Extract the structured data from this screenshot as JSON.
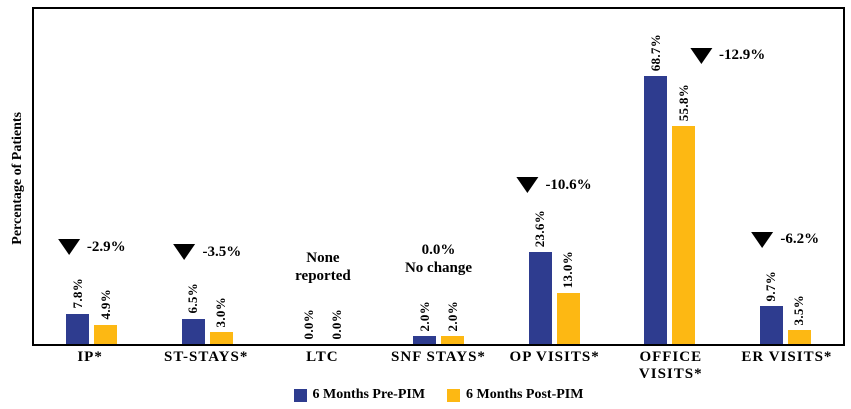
{
  "chart_data": {
    "type": "bar",
    "title": "",
    "ylabel": "Percentage of Patients",
    "xlabel": "",
    "categories": [
      "IP*",
      "ST-STAYS*",
      "LTC",
      "SNF STAYS*",
      "OP VISITS*",
      "OFFICE\nVISITS*",
      "ER VISITS*"
    ],
    "series": [
      {
        "name": "6 Months Pre-PIM",
        "color": "#2e3c8f",
        "values": [
          7.8,
          6.5,
          0.0,
          2.0,
          23.6,
          68.7,
          9.7
        ]
      },
      {
        "name": "6 Months Post-PIM",
        "color": "#fdb813",
        "values": [
          4.9,
          3.0,
          0.0,
          2.0,
          13.0,
          55.8,
          3.5
        ]
      }
    ],
    "value_label_format": "{value}%",
    "annotations": [
      {
        "category": "IP*",
        "type": "decrease",
        "text": "-2.9%"
      },
      {
        "category": "ST-STAYS*",
        "type": "decrease",
        "text": "-3.5%"
      },
      {
        "category": "LTC",
        "type": "note",
        "lines": [
          "None",
          "reported"
        ]
      },
      {
        "category": "SNF STAYS*",
        "type": "note",
        "lines": [
          "0.0%",
          "No change"
        ]
      },
      {
        "category": "OP VISITS*",
        "type": "decrease",
        "text": "-10.6%"
      },
      {
        "category": "OFFICE VISITS*",
        "type": "decrease",
        "text": "-12.9%"
      },
      {
        "category": "ER VISITS*",
        "type": "decrease",
        "text": "-6.2%"
      }
    ],
    "ylim": [
      0,
      75
    ],
    "grid": false,
    "legend_position": "bottom",
    "axis_color": "#000000"
  }
}
